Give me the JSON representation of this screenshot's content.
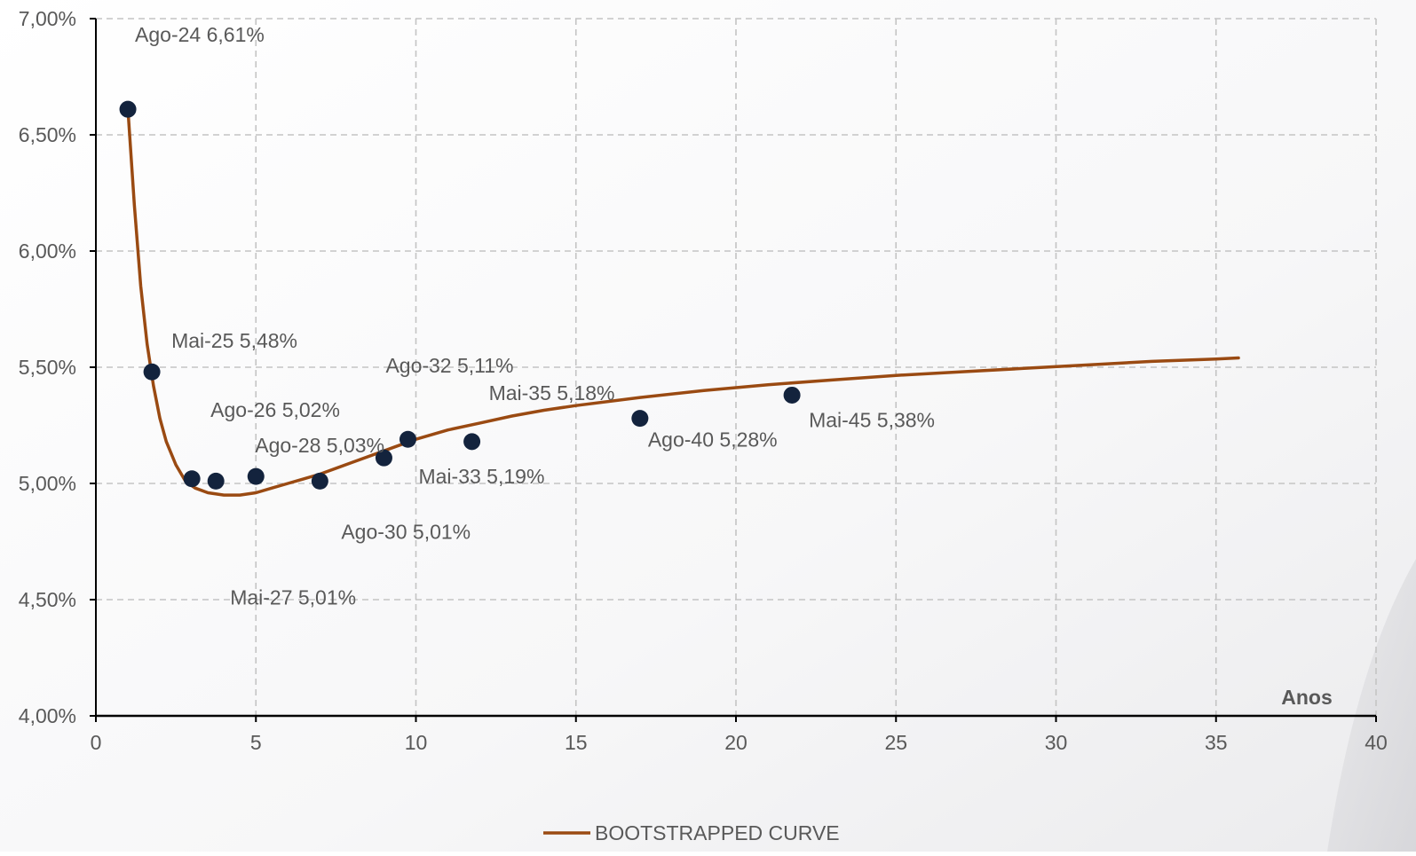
{
  "chart_data": {
    "type": "scatter",
    "title": "",
    "xlabel": "Anos",
    "ylabel": "",
    "xlim": [
      0,
      40
    ],
    "ylim": [
      4.0,
      7.0
    ],
    "x_ticks": [
      0,
      5,
      10,
      15,
      20,
      25,
      30,
      35,
      40
    ],
    "x_tick_labels": [
      "0",
      "5",
      "10",
      "15",
      "20",
      "25",
      "30",
      "35",
      "40"
    ],
    "y_ticks": [
      4.0,
      4.5,
      5.0,
      5.5,
      6.0,
      6.5,
      7.0
    ],
    "y_tick_labels": [
      "4,00%",
      "4,50%",
      "5,00%",
      "5,50%",
      "6,00%",
      "6,50%",
      "7,00%"
    ],
    "grid": true,
    "legend": {
      "position": "bottom",
      "entries": [
        "BOOTSTRAPPED CURVE"
      ]
    },
    "colors": {
      "curve": "#9a4a12",
      "points": "#13233d",
      "grid": "#c4c4c4",
      "axis": "#000000",
      "text": "#595959"
    },
    "points": [
      {
        "x": 1.0,
        "y": 6.61,
        "label": "Ago-24 6,61%"
      },
      {
        "x": 1.75,
        "y": 5.48,
        "label": "Mai-25 5,48%"
      },
      {
        "x": 3.0,
        "y": 5.02,
        "label": "Ago-26 5,02%"
      },
      {
        "x": 3.75,
        "y": 5.01,
        "label": "Mai-27 5,01%"
      },
      {
        "x": 5.0,
        "y": 5.03,
        "label": "Ago-28 5,03%"
      },
      {
        "x": 7.0,
        "y": 5.01,
        "label": "Ago-30 5,01%"
      },
      {
        "x": 9.0,
        "y": 5.11,
        "label": "Ago-32 5,11%"
      },
      {
        "x": 9.75,
        "y": 5.19,
        "label": "Mai-33 5,19%"
      },
      {
        "x": 11.75,
        "y": 5.18,
        "label": "Mai-35 5,18%"
      },
      {
        "x": 17.0,
        "y": 5.28,
        "label": "Ago-40 5,28%"
      },
      {
        "x": 21.75,
        "y": 5.38,
        "label": "Mai-45 5,38%"
      }
    ],
    "series": [
      {
        "name": "BOOTSTRAPPED CURVE",
        "type": "line",
        "x": [
          1.0,
          1.2,
          1.4,
          1.6,
          1.8,
          2.0,
          2.2,
          2.5,
          2.8,
          3.1,
          3.5,
          4.0,
          4.5,
          5.0,
          5.5,
          6.0,
          6.5,
          7.0,
          8.0,
          9.0,
          10.0,
          11.0,
          12.0,
          13.0,
          14.0,
          15.0,
          17.0,
          19.0,
          21.0,
          23.0,
          25.0,
          27.0,
          29.0,
          31.0,
          33.0,
          35.0,
          35.7
        ],
        "y": [
          6.61,
          6.2,
          5.85,
          5.6,
          5.42,
          5.28,
          5.18,
          5.08,
          5.01,
          4.98,
          4.96,
          4.95,
          4.95,
          4.96,
          4.98,
          5.0,
          5.02,
          5.04,
          5.09,
          5.14,
          5.19,
          5.23,
          5.26,
          5.29,
          5.315,
          5.335,
          5.37,
          5.4,
          5.425,
          5.445,
          5.465,
          5.48,
          5.495,
          5.51,
          5.525,
          5.535,
          5.54
        ]
      }
    ]
  }
}
